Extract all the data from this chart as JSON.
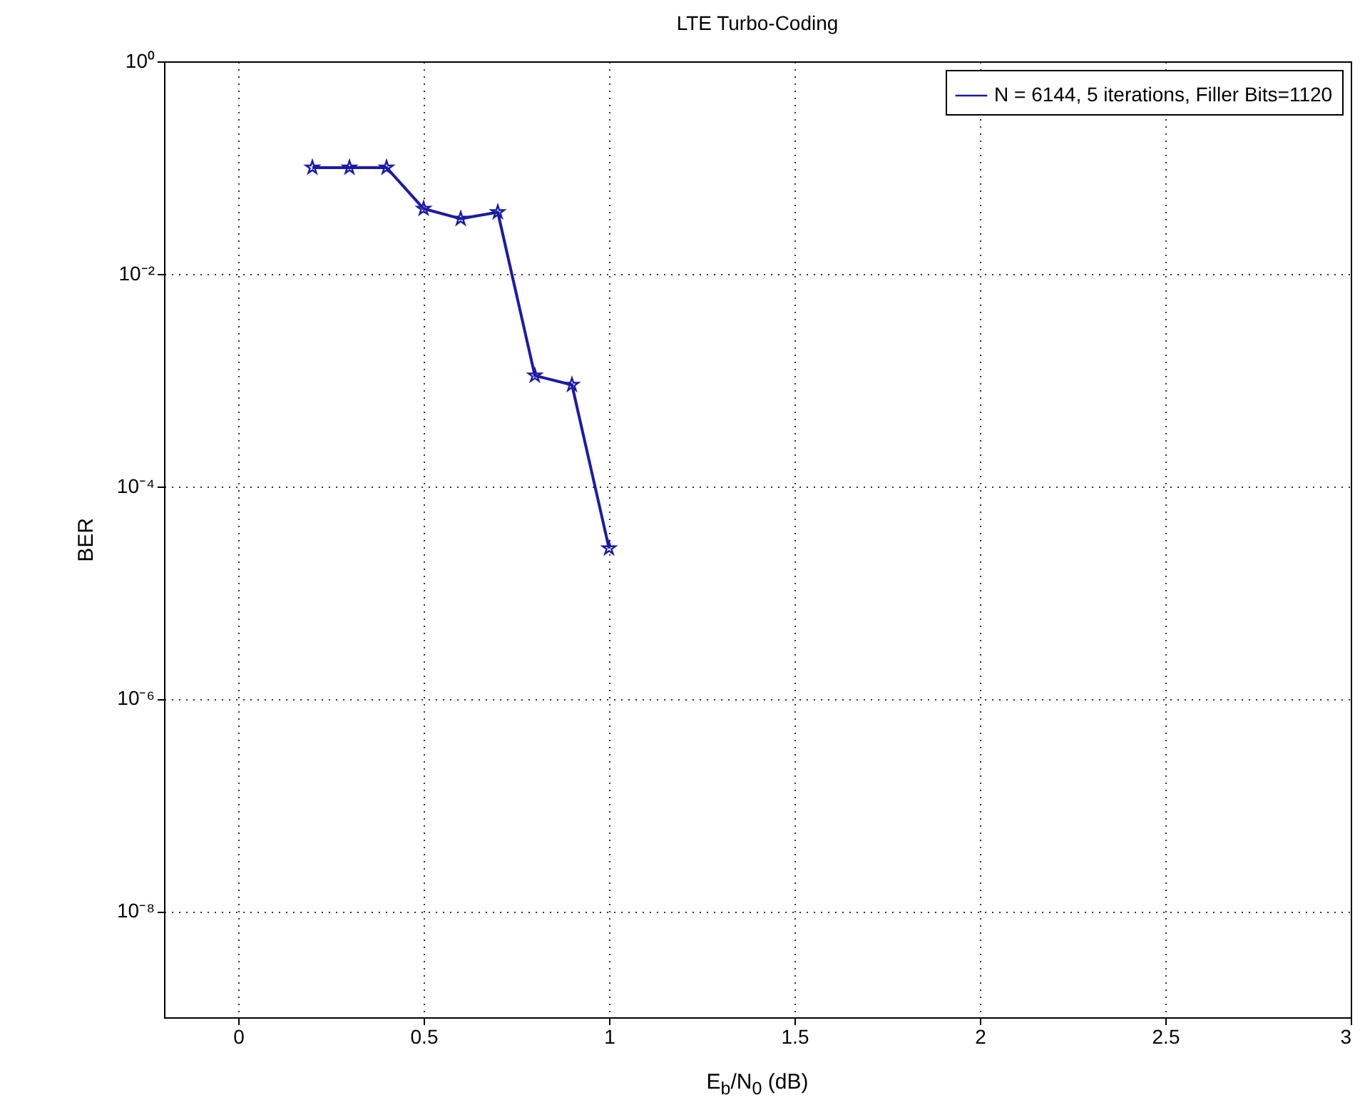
{
  "chart_data": {
    "type": "line",
    "title": "LTE Turbo-Coding",
    "xlabel": "E$_{b}$/N$_{0}$ (dB)",
    "ylabel": "BER",
    "x": [
      0.2,
      0.3,
      0.4,
      0.5,
      0.6,
      0.7,
      0.8,
      0.9,
      1.0
    ],
    "series": [
      {
        "name": "N = 6144, 5 iterations, Filler Bits=1120",
        "color": "#1a1aa8",
        "values": [
          0.1,
          0.1,
          0.1,
          0.041,
          0.033,
          0.038,
          0.0011,
          0.0009,
          2.6e-05
        ]
      }
    ],
    "xlim": [
      -0.2,
      3
    ],
    "xticks": [
      0,
      0.5,
      1,
      1.5,
      2,
      2.5,
      3
    ],
    "ylim": [
      1e-09,
      1
    ],
    "yticks": [
      {
        "value": 1,
        "label": "10⁰"
      },
      {
        "value": 0.01,
        "label": "10⁻²"
      },
      {
        "value": 0.0001,
        "label": "10⁻⁴"
      },
      {
        "value": 1e-06,
        "label": "10⁻⁶"
      },
      {
        "value": 1e-08,
        "label": "10⁻⁸"
      }
    ],
    "log": true,
    "grid": true,
    "legend": "top right",
    "marker": "star",
    "line_style": "solid"
  }
}
